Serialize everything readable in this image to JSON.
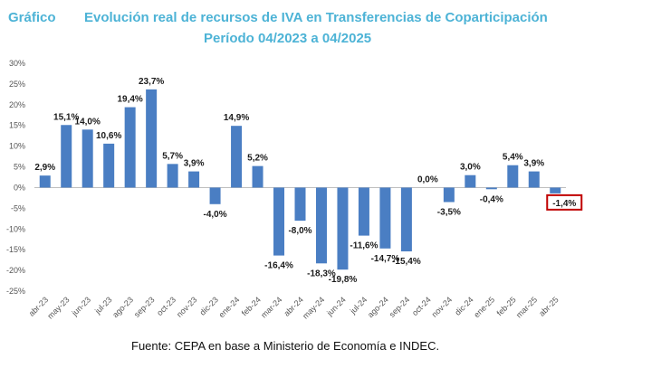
{
  "header": {
    "label": "Gráfico",
    "title": "Evolución real de recursos de IVA en Transferencias de Coparticipación",
    "subtitle": "Período 04/2023 a 04/2025"
  },
  "colors": {
    "title": "#4DB3D6",
    "bar": "#4A7EC3",
    "highlight_border": "#C00000",
    "text": "#1a1a1a",
    "axis": "#555555"
  },
  "chart_data": {
    "type": "bar",
    "categories": [
      "abr-23",
      "may-23",
      "jun-23",
      "jul-23",
      "ago-23",
      "sep-23",
      "oct-23",
      "nov-23",
      "dic-23",
      "ene-24",
      "feb-24",
      "mar-24",
      "abr-24",
      "may-24",
      "jun-24",
      "jul-24",
      "ago-24",
      "sep-24",
      "oct-24",
      "nov-24",
      "dic-24",
      "ene-25",
      "feb-25",
      "mar-25",
      "abr-25"
    ],
    "values": [
      2.9,
      15.1,
      14.0,
      10.6,
      19.4,
      23.7,
      5.7,
      3.9,
      -4.0,
      14.9,
      5.2,
      -16.4,
      -8.0,
      -18.3,
      -19.8,
      -11.6,
      -14.7,
      -15.4,
      0.0,
      -3.5,
      3.0,
      -0.4,
      5.4,
      3.9,
      -1.4
    ],
    "data_labels": [
      "2,9%",
      "15,1%",
      "14,0%",
      "10,6%",
      "19,4%",
      "23,7%",
      "5,7%",
      "3,9%",
      "-4,0%",
      "14,9%",
      "5,2%",
      "-16,4%",
      "-8,0%",
      "-18,3%",
      "-19,8%",
      "-11,6%",
      "-14,7%",
      "-15,4%",
      "0,0%",
      "-3,5%",
      "3,0%",
      "-0,4%",
      "5,4%",
      "3,9%",
      "-1,4%"
    ],
    "yticks": [
      "30%",
      "25%",
      "20%",
      "15%",
      "10%",
      "5%",
      "0%",
      "-5%",
      "-10%",
      "-15%",
      "-20%",
      "-25%"
    ],
    "ylim": [
      -25,
      30
    ],
    "grid": false,
    "legend": "none",
    "highlighted_label": "-1,4%"
  },
  "footer": {
    "source": "Fuente: CEPA en base a Ministerio de Economía e INDEC."
  }
}
